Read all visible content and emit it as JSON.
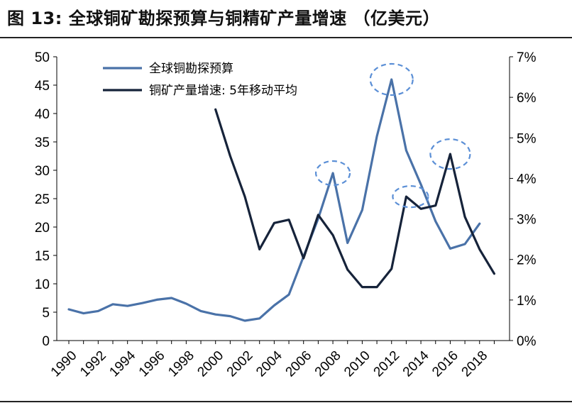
{
  "header": {
    "title": "图 13: 全球铜矿勘探预算与铜精矿产量增速 （亿美元）"
  },
  "colors": {
    "budget_line": "#4a72a8",
    "growth_line": "#16233a",
    "highlight_ellipse": "#5b8fd6"
  },
  "chart_data": {
    "type": "line",
    "title": "",
    "xlabel": "",
    "ylabel": "",
    "y2label": "",
    "x": [
      1990,
      1991,
      1992,
      1993,
      1994,
      1995,
      1996,
      1997,
      1998,
      1999,
      2000,
      2001,
      2002,
      2003,
      2004,
      2005,
      2006,
      2007,
      2008,
      2009,
      2010,
      2011,
      2012,
      2013,
      2014,
      2015,
      2016,
      2017,
      2018,
      2019
    ],
    "x_tick_labels": [
      "1990",
      "1992",
      "1994",
      "1996",
      "1998",
      "2000",
      "2002",
      "2004",
      "2006",
      "2008",
      "2010",
      "2012",
      "2014",
      "2016",
      "2018"
    ],
    "ylim": [
      0,
      50
    ],
    "y_ticks": [
      0,
      5,
      10,
      15,
      20,
      25,
      30,
      35,
      40,
      45,
      50
    ],
    "y2lim": [
      0,
      7
    ],
    "y2_ticks": [
      "0%",
      "1%",
      "2%",
      "3%",
      "4%",
      "5%",
      "6%",
      "7%"
    ],
    "legend_position": "top-left",
    "series": [
      {
        "name": "全球铜勘探预算",
        "axis": "left",
        "values": [
          5.5,
          4.8,
          5.2,
          6.4,
          6.1,
          6.6,
          7.2,
          7.5,
          6.5,
          5.2,
          4.6,
          4.3,
          3.5,
          3.9,
          6.2,
          8.1,
          14.8,
          21.5,
          29.5,
          17.2,
          23.0,
          36.0,
          46.0,
          33.5,
          27.5,
          21.0,
          16.2,
          17.0,
          20.6,
          null
        ]
      },
      {
        "name": "铜矿产量增速: 5年移动平均",
        "axis": "right",
        "values": [
          null,
          null,
          null,
          null,
          null,
          null,
          null,
          null,
          null,
          null,
          5.7,
          4.55,
          3.55,
          2.25,
          2.9,
          2.98,
          2.03,
          3.1,
          2.6,
          1.75,
          1.32,
          1.32,
          1.77,
          3.55,
          3.25,
          3.33,
          4.6,
          3.05,
          2.25,
          1.65
        ]
      }
    ],
    "annotations": "dashed ellipses highlighting peaks at 2008, 2012 (budget) and 2013, 2016 (growth)"
  }
}
